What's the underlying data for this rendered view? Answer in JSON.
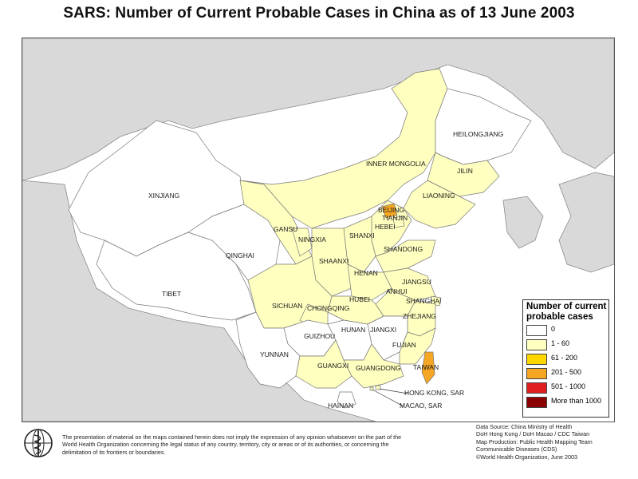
{
  "title": "SARS: Number of Current Probable Cases in China as of 13 June 2003",
  "colors": {
    "ocean": "#ffffff",
    "neighbor_land": "#d9d9d9",
    "coast": "#5b7fc0",
    "class_0": "#ffffff",
    "class_1_60": "#ffffc0",
    "class_61_200": "#ffd700",
    "class_201_500": "#f5a623",
    "class_501_1000": "#e02020",
    "class_over_1000": "#8b0000"
  },
  "provinces": [
    {
      "name": "HEILONGJIANG",
      "category": "0"
    },
    {
      "name": "JILIN",
      "category": "1 - 60"
    },
    {
      "name": "LIAONING",
      "category": "1 - 60"
    },
    {
      "name": "INNER MONGOLIA",
      "category": "1 - 60"
    },
    {
      "name": "XINJIANG",
      "category": "0"
    },
    {
      "name": "GANSU",
      "category": "1 - 60"
    },
    {
      "name": "NINGXIA",
      "category": "1 - 60"
    },
    {
      "name": "SHANXI",
      "category": "1 - 60"
    },
    {
      "name": "HEBEI",
      "category": "1 - 60"
    },
    {
      "name": "BEIJING",
      "category": "201 - 500"
    },
    {
      "name": "TIANJIN",
      "category": "1 - 60"
    },
    {
      "name": "QINGHAI",
      "category": "0"
    },
    {
      "name": "SHAANXI",
      "category": "1 - 60"
    },
    {
      "name": "SHANDONG",
      "category": "1 - 60"
    },
    {
      "name": "HENAN",
      "category": "1 - 60"
    },
    {
      "name": "JIANGSU",
      "category": "1 - 60"
    },
    {
      "name": "ANHUI",
      "category": "1 - 60"
    },
    {
      "name": "SHANGHAI",
      "category": "1 - 60"
    },
    {
      "name": "TIBET",
      "category": "0"
    },
    {
      "name": "SICHUAN",
      "category": "1 - 60"
    },
    {
      "name": "CHONGQING",
      "category": "1 - 60"
    },
    {
      "name": "HUBEI",
      "category": "1 - 60"
    },
    {
      "name": "ZHEJIANG",
      "category": "1 - 60"
    },
    {
      "name": "GUIZHOU",
      "category": "0"
    },
    {
      "name": "HUNAN",
      "category": "0"
    },
    {
      "name": "JIANGXI",
      "category": "0"
    },
    {
      "name": "FUJIAN",
      "category": "1 - 60"
    },
    {
      "name": "YUNNAN",
      "category": "0"
    },
    {
      "name": "GUANGXI",
      "category": "1 - 60"
    },
    {
      "name": "GUANGDONG",
      "category": "1 - 60"
    },
    {
      "name": "TAIWAN",
      "category": "201 - 500"
    },
    {
      "name": "HONG KONG, SAR",
      "category": "1 - 60"
    },
    {
      "name": "MACAO, SAR",
      "category": "1 - 60"
    },
    {
      "name": "HAINAN",
      "category": "0"
    }
  ],
  "legend": {
    "title": "Number of current probable cases",
    "items": [
      {
        "label": "0",
        "color": "#ffffff"
      },
      {
        "label": "1 - 60",
        "color": "#ffffc0"
      },
      {
        "label": "61 - 200",
        "color": "#ffd700"
      },
      {
        "label": "201 - 500",
        "color": "#f5a623"
      },
      {
        "label": "501 - 1000",
        "color": "#e02020"
      },
      {
        "label": "More than 1000",
        "color": "#8b0000"
      }
    ]
  },
  "disclaimer": "The presentation of material on the maps contained herein does not imply the expression of any opinion whatsoever on the part of the World Health Organization concerning the legal status of any country, territory, city or areas or of its authorities, or concerning the delimitation of its frontiers or boundaries.",
  "credits": {
    "line1": "Data Source: China Ministry of Health",
    "line2": "DoH Hong Kong / DoH Macao / CDC Taiwan",
    "line3": "Map Production: Public Health Mapping Team",
    "line4": "Communicable Diseases (CDS)",
    "line5": "©World Health Organization, June 2003"
  }
}
